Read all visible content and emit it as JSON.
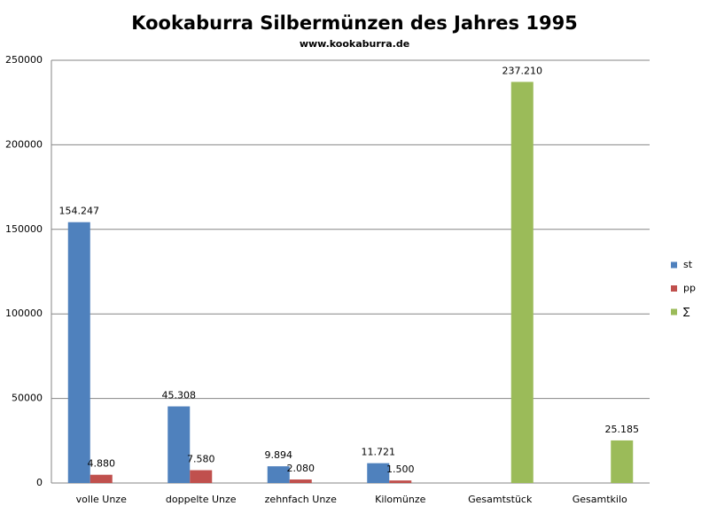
{
  "chart_data": {
    "type": "bar",
    "title": "Kookaburra Silbermünzen des Jahres 1995",
    "subtitle": "www.kookaburra.de",
    "categories": [
      "volle Unze",
      "doppelte Unze",
      "zehnfach Unze",
      "Kilomünze",
      "Gesamtstück",
      "Gesamtkilo"
    ],
    "series": [
      {
        "name": "st",
        "color": "#4f81bd",
        "values": [
          154247,
          45308,
          9894,
          11721,
          null,
          null
        ],
        "value_labels": [
          "154.247",
          "45.308",
          "9.894",
          "11.721",
          null,
          null
        ]
      },
      {
        "name": "pp",
        "color": "#c0504d",
        "values": [
          4880,
          7580,
          2080,
          1500,
          null,
          null
        ],
        "value_labels": [
          "4.880",
          "7.580",
          "2.080",
          "1.500",
          null,
          null
        ]
      },
      {
        "name": "∑",
        "color": "#9bbb59",
        "values": [
          null,
          null,
          null,
          null,
          237210,
          25185
        ],
        "value_labels": [
          null,
          null,
          null,
          null,
          "237.210",
          "25.185"
        ]
      }
    ],
    "ylim": [
      0,
      250000
    ],
    "yticks": [
      0,
      50000,
      100000,
      150000,
      200000,
      250000
    ],
    "grid": true,
    "legend": "right"
  }
}
